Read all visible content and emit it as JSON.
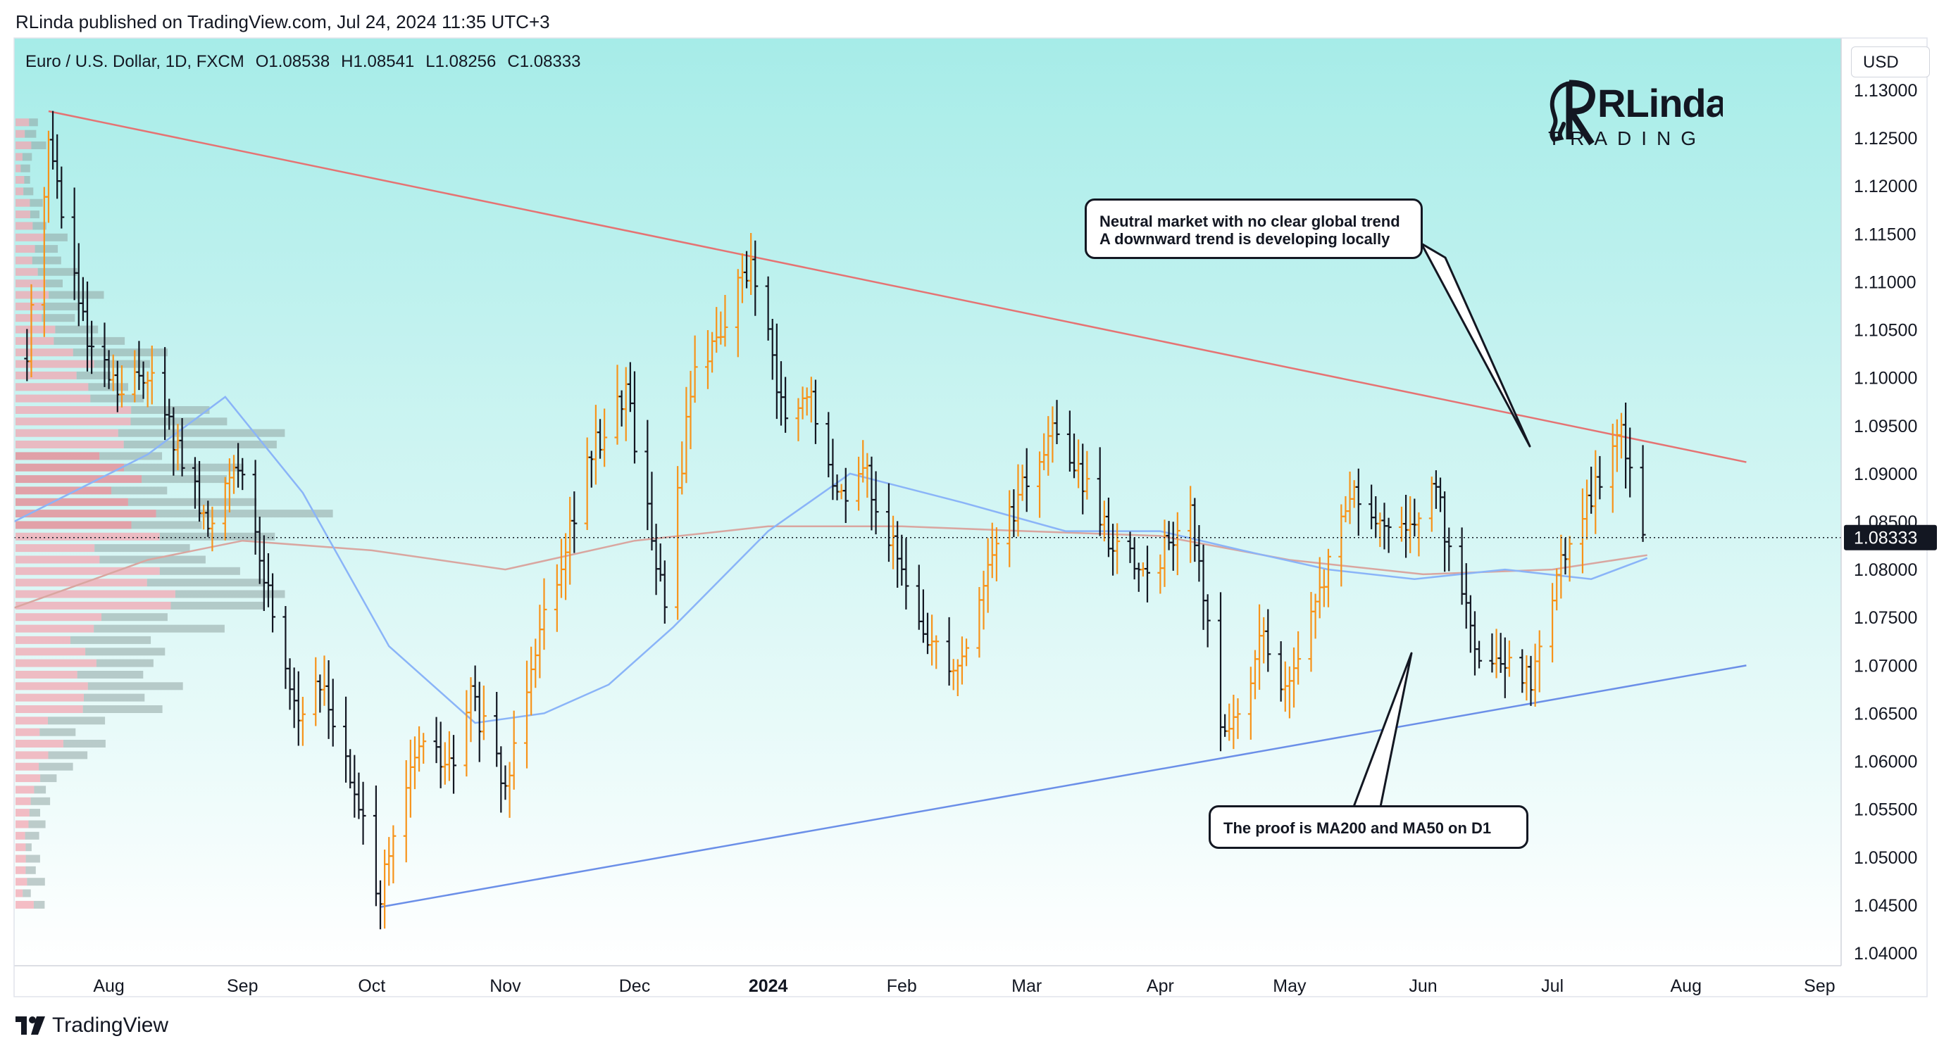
{
  "header": {
    "publisher_line": "RLinda published on TradingView.com, Jul 24, 2024 11:35 UTC+3"
  },
  "legend": {
    "symbol": "Euro / U.S. Dollar, 1D, FXCM",
    "open": "O1.08538",
    "high": "H1.08541",
    "low": "L1.08256",
    "close": "C1.08333"
  },
  "currency_button": {
    "label": "USD"
  },
  "brand": {
    "line1": "RLinda",
    "line2": "TRADING"
  },
  "footer": {
    "brand": "TradingView"
  },
  "annotations": [
    {
      "id": "callout-top",
      "lines": [
        "Neutral market with no clear global trend",
        "A downward trend is developing locally"
      ]
    },
    {
      "id": "callout-bottom",
      "lines": [
        "The proof is MA200 and MA50 on D1"
      ]
    }
  ],
  "colors": {
    "background_top": "#a6ece8",
    "background_bottom": "#ffffff",
    "bar_up": "#f7931a",
    "bar_down": "#131722",
    "resistance_line": "#e57373",
    "support_line": "#6b8fe8",
    "ma50": "#8ab4f8",
    "ma200": "#d9a6a0",
    "price_tag": "#131722"
  },
  "chart_data": {
    "type": "ohlc",
    "symbol": "EURUSD",
    "timeframe": "1D",
    "y_axis": {
      "ticks": [
        "1.13000",
        "1.12500",
        "1.12000",
        "1.11500",
        "1.11000",
        "1.10500",
        "1.10000",
        "1.09500",
        "1.09000",
        "1.08500",
        "1.08000",
        "1.07500",
        "1.07000",
        "1.06500",
        "1.06000",
        "1.05500",
        "1.05000",
        "1.04500",
        "1.04000"
      ],
      "ylim": [
        1.04,
        1.13
      ]
    },
    "x_axis": {
      "ticks": [
        "Aug",
        "Sep",
        "Oct",
        "Nov",
        "Dec",
        "2024",
        "Feb",
        "Mar",
        "Apr",
        "May",
        "Jun",
        "Jul",
        "Aug",
        "Sep"
      ],
      "xlim": [
        "2023-07-10",
        "2024-09-06"
      ]
    },
    "last_price": "1.08333",
    "ohlc_summary": {
      "open": 1.08538,
      "high": 1.08541,
      "low": 1.08256,
      "close": 1.08333
    },
    "price_path": [
      [
        "2023-07-13",
        1.102
      ],
      [
        "2023-07-18",
        1.125
      ],
      [
        "2023-07-27",
        1.103
      ],
      [
        "2023-08-04",
        1.098
      ],
      [
        "2023-08-10",
        1.101
      ],
      [
        "2023-08-24",
        1.084
      ],
      [
        "2023-08-30",
        1.092
      ],
      [
        "2023-09-14",
        1.065
      ],
      [
        "2023-09-20",
        1.068
      ],
      [
        "2023-10-03",
        1.046
      ],
      [
        "2023-10-12",
        1.062
      ],
      [
        "2023-10-20",
        1.059
      ],
      [
        "2023-10-24",
        1.067
      ],
      [
        "2023-11-01",
        1.057
      ],
      [
        "2023-11-07",
        1.071
      ],
      [
        "2023-11-21",
        1.092
      ],
      [
        "2023-11-29",
        1.099
      ],
      [
        "2023-12-08",
        1.076
      ],
      [
        "2023-12-14",
        1.099
      ],
      [
        "2023-12-28",
        1.112
      ],
      [
        "2024-01-05",
        1.095
      ],
      [
        "2024-01-11",
        1.098
      ],
      [
        "2024-01-16",
        1.088
      ],
      [
        "2024-01-24",
        1.09
      ],
      [
        "2024-02-05",
        1.074
      ],
      [
        "2024-02-14",
        1.07
      ],
      [
        "2024-02-23",
        1.083
      ],
      [
        "2024-03-08",
        1.095
      ],
      [
        "2024-03-19",
        1.084
      ],
      [
        "2024-03-28",
        1.079
      ],
      [
        "2024-04-08",
        1.086
      ],
      [
        "2024-04-16",
        1.062
      ],
      [
        "2024-04-25",
        1.073
      ],
      [
        "2024-05-01",
        1.067
      ],
      [
        "2024-05-15",
        1.088
      ],
      [
        "2024-05-24",
        1.083
      ],
      [
        "2024-06-04",
        1.088
      ],
      [
        "2024-06-14",
        1.07
      ],
      [
        "2024-06-26",
        1.069
      ],
      [
        "2024-07-05",
        1.084
      ],
      [
        "2024-07-17",
        1.094
      ],
      [
        "2024-07-23",
        1.0833
      ]
    ],
    "resistance_line": {
      "from": [
        "2023-07-18",
        1.1278
      ],
      "to": [
        "2024-08-15",
        1.0912
      ]
    },
    "support_line": {
      "from": [
        "2023-10-03",
        1.0448
      ],
      "to": [
        "2024-08-15",
        1.07
      ]
    },
    "ma50": [
      [
        "2023-07-10",
        1.085
      ],
      [
        "2023-08-10",
        1.092
      ],
      [
        "2023-08-28",
        1.098
      ],
      [
        "2023-09-15",
        1.088
      ],
      [
        "2023-10-05",
        1.072
      ],
      [
        "2023-10-25",
        1.064
      ],
      [
        "2023-11-10",
        1.065
      ],
      [
        "2023-11-25",
        1.068
      ],
      [
        "2023-12-10",
        1.074
      ],
      [
        "2024-01-01",
        1.084
      ],
      [
        "2024-01-20",
        1.09
      ],
      [
        "2024-02-15",
        1.087
      ],
      [
        "2024-03-10",
        1.084
      ],
      [
        "2024-04-01",
        1.084
      ],
      [
        "2024-04-20",
        1.082
      ],
      [
        "2024-05-10",
        1.08
      ],
      [
        "2024-05-30",
        1.079
      ],
      [
        "2024-06-20",
        1.08
      ],
      [
        "2024-07-10",
        1.079
      ],
      [
        "2024-07-23",
        1.0812
      ]
    ],
    "ma200": [
      [
        "2023-07-10",
        1.076
      ],
      [
        "2023-08-10",
        1.081
      ],
      [
        "2023-09-01",
        1.083
      ],
      [
        "2023-10-01",
        1.082
      ],
      [
        "2023-11-01",
        1.08
      ],
      [
        "2023-12-01",
        1.083
      ],
      [
        "2024-01-01",
        1.0845
      ],
      [
        "2024-02-01",
        1.0845
      ],
      [
        "2024-03-01",
        1.084
      ],
      [
        "2024-04-01",
        1.0835
      ],
      [
        "2024-05-01",
        1.081
      ],
      [
        "2024-06-01",
        1.0795
      ],
      [
        "2024-07-01",
        1.08
      ],
      [
        "2024-07-23",
        1.0815
      ]
    ],
    "volume_profile": {
      "price_step": 0.0012,
      "from": 1.045,
      "to": 1.1275
    }
  }
}
